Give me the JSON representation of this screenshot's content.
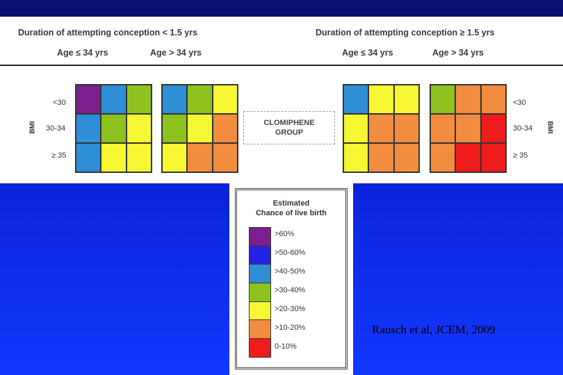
{
  "headers": {
    "left": "Duration of attempting conception < 1.5 yrs",
    "right": "Duration of attempting conception ≥ 1.5 yrs",
    "age_le": "Age ≤ 34 yrs",
    "age_gt": "Age > 34 yrs"
  },
  "bmi_label": "BMI",
  "bmi_rows": [
    "<30",
    "30-34",
    "≥ 35"
  ],
  "center_label": [
    "CLOMIPHENE",
    "GROUP"
  ],
  "colors": {
    "gt60": "#7b1f8f",
    "50_60": "#2222e6",
    "40_50": "#2e8fd6",
    "30_40": "#8ec21e",
    "20_30": "#f6f632",
    "10_20": "#f28c3f",
    "0_10": "#ee1c1c"
  },
  "grids": [
    {
      "name": "short-young",
      "cells": [
        [
          "gt60",
          "40_50",
          "30_40"
        ],
        [
          "40_50",
          "30_40",
          "20_30"
        ],
        [
          "40_50",
          "20_30",
          "20_30"
        ]
      ]
    },
    {
      "name": "short-old",
      "cells": [
        [
          "40_50",
          "30_40",
          "20_30"
        ],
        [
          "30_40",
          "20_30",
          "10_20"
        ],
        [
          "20_30",
          "10_20",
          "10_20"
        ]
      ]
    },
    {
      "name": "long-young",
      "cells": [
        [
          "40_50",
          "20_30",
          "20_30"
        ],
        [
          "20_30",
          "10_20",
          "10_20"
        ],
        [
          "20_30",
          "10_20",
          "10_20"
        ]
      ]
    },
    {
      "name": "long-old",
      "cells": [
        [
          "30_40",
          "10_20",
          "10_20"
        ],
        [
          "10_20",
          "10_20",
          "0_10"
        ],
        [
          "10_20",
          "0_10",
          "0_10"
        ]
      ]
    }
  ],
  "legend": {
    "title": [
      "Estimated",
      "Chance of live birth"
    ],
    "items": [
      {
        "key": "gt60",
        "label": ">60%"
      },
      {
        "key": "50_60",
        "label": ">50-60%"
      },
      {
        "key": "40_50",
        "label": ">40-50%"
      },
      {
        "key": "30_40",
        "label": ">30-40%"
      },
      {
        "key": "20_30",
        "label": ">20-30%"
      },
      {
        "key": "10_20",
        "label": ">10-20%"
      },
      {
        "key": "0_10",
        "label": "0-10%"
      }
    ]
  },
  "citation": "Rausch et al, JCEM, 2009"
}
